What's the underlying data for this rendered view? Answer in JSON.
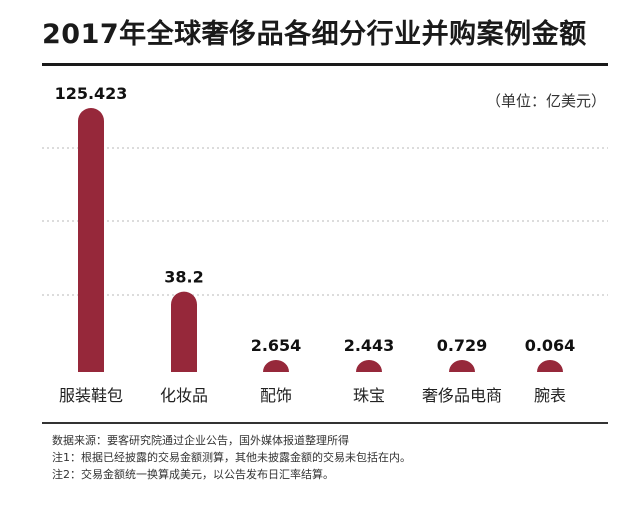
{
  "title": "2017年全球奢侈品各细分行业并购案例金额",
  "unit": "（单位：亿美元）",
  "notes": [
    "数据来源：要客研究院通过企业公告，国外媒体报道整理所得",
    "注1：根据已经披露的交易金额测算，其他未披露金额的交易未包括在内。",
    "注2：交易金额统一换算成美元，以公告发布日汇率结算。"
  ],
  "chart_data": {
    "type": "bar",
    "title": "2017年全球奢侈品各细分行业并购案例金额",
    "ylabel": "",
    "unit": "（单位：亿美元）",
    "categories": [
      "服装鞋包",
      "化妆品",
      "配饰",
      "珠宝",
      "奢侈品电商",
      "腕表"
    ],
    "values": [
      125.423,
      38.2,
      2.654,
      2.443,
      0.729,
      0.064
    ],
    "value_labels": [
      "125.423",
      "38.2",
      "2.654",
      "2.443",
      "0.729",
      "0.064"
    ],
    "ylim": [
      0,
      125.423
    ],
    "grid": true,
    "bar_color": "#96283a"
  }
}
